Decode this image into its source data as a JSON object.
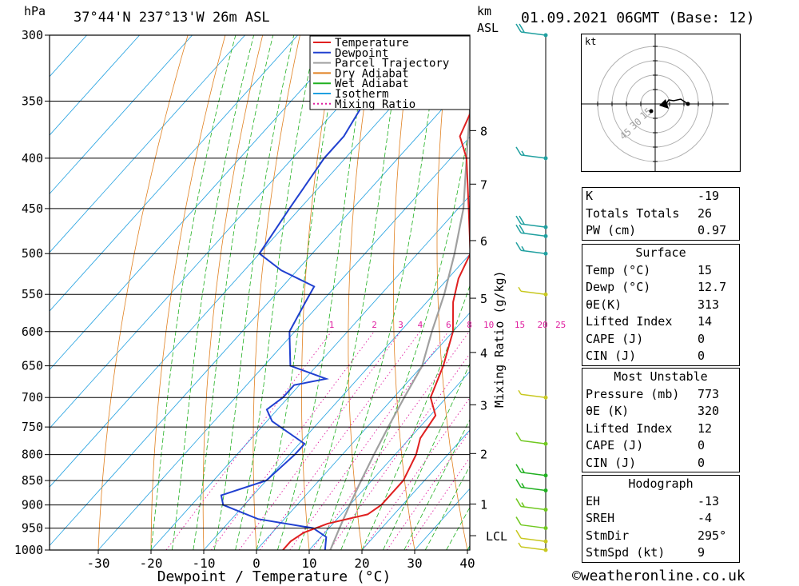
{
  "header": {
    "pressure_unit": "hPa",
    "location": "37°44'N  237°13'W  26m  ASL",
    "km_label": "km",
    "asl_label": "ASL",
    "datetime": "01.09.2021  06GMT  (Base: 12)"
  },
  "legend": [
    {
      "label": "Temperature",
      "color": "#e02020",
      "style": "solid"
    },
    {
      "label": "Dewpoint",
      "color": "#2040d0",
      "style": "solid"
    },
    {
      "label": "Parcel Trajectory",
      "color": "#a0a0a0",
      "style": "solid"
    },
    {
      "label": "Dry Adiabat",
      "color": "#e08020",
      "style": "solid"
    },
    {
      "label": "Wet Adiabat",
      "color": "#20b020",
      "style": "solid"
    },
    {
      "label": "Isotherm",
      "color": "#20a0e0",
      "style": "solid"
    },
    {
      "label": "Mixing Ratio",
      "color": "#e020a0",
      "style": "dotted"
    }
  ],
  "chart_data": {
    "type": "skew-t",
    "xlabel": "Dewpoint / Temperature (°C)",
    "ylabel": "hPa",
    "x_ticks": [
      -30,
      -20,
      -10,
      0,
      10,
      20,
      30,
      40
    ],
    "pressure_levels": [
      300,
      350,
      400,
      450,
      500,
      550,
      600,
      650,
      700,
      750,
      800,
      850,
      900,
      950,
      1000
    ],
    "km_ticks": [
      {
        "label": "8",
        "p": 375
      },
      {
        "label": "7",
        "p": 425
      },
      {
        "label": "6",
        "p": 485
      },
      {
        "label": "5",
        "p": 555
      },
      {
        "label": "4",
        "p": 630
      },
      {
        "label": "3",
        "p": 712
      },
      {
        "label": "2",
        "p": 798
      },
      {
        "label": "1",
        "p": 898
      },
      {
        "label": "LCL",
        "p": 967
      }
    ],
    "mixing_ratio_label": "Mixing Ratio (g/kg)",
    "mixing_ratio_values": [
      1,
      2,
      3,
      4,
      6,
      8,
      10,
      15,
      20,
      25
    ],
    "temperature": [
      [
        300,
        -39
      ],
      [
        330,
        -36
      ],
      [
        350,
        -35
      ],
      [
        380,
        -32
      ],
      [
        400,
        -27
      ],
      [
        450,
        -18
      ],
      [
        500,
        -10
      ],
      [
        530,
        -8
      ],
      [
        560,
        -5
      ],
      [
        600,
        0
      ],
      [
        650,
        4
      ],
      [
        700,
        7
      ],
      [
        730,
        11
      ],
      [
        770,
        12
      ],
      [
        800,
        14
      ],
      [
        850,
        16
      ],
      [
        900,
        16
      ],
      [
        920,
        15
      ],
      [
        940,
        9
      ],
      [
        960,
        6
      ],
      [
        980,
        5
      ],
      [
        1000,
        5
      ]
    ],
    "dewpoint": [
      [
        300,
        -50
      ],
      [
        330,
        -56
      ],
      [
        350,
        -56
      ],
      [
        380,
        -54
      ],
      [
        400,
        -54
      ],
      [
        450,
        -52
      ],
      [
        500,
        -50
      ],
      [
        520,
        -43
      ],
      [
        540,
        -34
      ],
      [
        560,
        -33
      ],
      [
        600,
        -31
      ],
      [
        650,
        -25
      ],
      [
        670,
        -16
      ],
      [
        680,
        -21
      ],
      [
        700,
        -21
      ],
      [
        720,
        -22
      ],
      [
        740,
        -19
      ],
      [
        780,
        -9
      ],
      [
        800,
        -9
      ],
      [
        850,
        -10
      ],
      [
        880,
        -16
      ],
      [
        900,
        -14
      ],
      [
        930,
        -5
      ],
      [
        950,
        7
      ],
      [
        970,
        11
      ],
      [
        1000,
        13
      ]
    ],
    "parcel": [
      [
        300,
        -48
      ],
      [
        350,
        -36
      ],
      [
        400,
        -27
      ],
      [
        450,
        -19
      ],
      [
        500,
        -13
      ],
      [
        550,
        -8
      ],
      [
        600,
        -4
      ],
      [
        650,
        0
      ],
      [
        700,
        2
      ],
      [
        750,
        4
      ],
      [
        800,
        6
      ],
      [
        850,
        8
      ],
      [
        900,
        10
      ],
      [
        950,
        12
      ],
      [
        1000,
        14
      ]
    ],
    "wind_barbs": [
      {
        "p": 300,
        "speed_kt": 20,
        "color": "#20a0a0"
      },
      {
        "p": 400,
        "speed_kt": 15,
        "color": "#20a0a0"
      },
      {
        "p": 470,
        "speed_kt": 20,
        "color": "#20a0a0"
      },
      {
        "p": 480,
        "speed_kt": 20,
        "color": "#20a0a0"
      },
      {
        "p": 500,
        "speed_kt": 15,
        "color": "#20a0a0"
      },
      {
        "p": 550,
        "speed_kt": 5,
        "color": "#c8c820"
      },
      {
        "p": 700,
        "speed_kt": 5,
        "color": "#c8c820"
      },
      {
        "p": 780,
        "speed_kt": 10,
        "color": "#70c820"
      },
      {
        "p": 840,
        "speed_kt": 15,
        "color": "#20b020"
      },
      {
        "p": 870,
        "speed_kt": 15,
        "color": "#20b020"
      },
      {
        "p": 910,
        "speed_kt": 15,
        "color": "#70c820"
      },
      {
        "p": 950,
        "speed_kt": 10,
        "color": "#70c820"
      },
      {
        "p": 980,
        "speed_kt": 10,
        "color": "#c8c820"
      },
      {
        "p": 1000,
        "speed_kt": 5,
        "color": "#c8c820"
      }
    ]
  },
  "hodograph": {
    "unit": "kt",
    "ring_labels": [
      "15",
      "30",
      "45"
    ]
  },
  "indices": {
    "rows": [
      {
        "k": "K",
        "v": "-19"
      },
      {
        "k": "Totals Totals",
        "v": "26"
      },
      {
        "k": "PW (cm)",
        "v": "0.97"
      }
    ]
  },
  "surface": {
    "title": "Surface",
    "rows": [
      {
        "k": "Temp (°C)",
        "v": "15"
      },
      {
        "k": "Dewp (°C)",
        "v": "12.7"
      },
      {
        "k": "θE(K)",
        "v": "313"
      },
      {
        "k": "Lifted Index",
        "v": "14"
      },
      {
        "k": "CAPE (J)",
        "v": "0"
      },
      {
        "k": "CIN (J)",
        "v": "0"
      }
    ]
  },
  "most_unstable": {
    "title": "Most Unstable",
    "rows": [
      {
        "k": "Pressure (mb)",
        "v": "773"
      },
      {
        "k": "θE (K)",
        "v": "320"
      },
      {
        "k": "Lifted Index",
        "v": "12"
      },
      {
        "k": "CAPE (J)",
        "v": "0"
      },
      {
        "k": "CIN (J)",
        "v": "0"
      }
    ]
  },
  "hodograph_table": {
    "title": "Hodograph",
    "rows": [
      {
        "k": "EH",
        "v": "-13"
      },
      {
        "k": "SREH",
        "v": "-4"
      },
      {
        "k": "StmDir",
        "v": "295°"
      },
      {
        "k": "StmSpd (kt)",
        "v": "9"
      }
    ]
  },
  "footer": {
    "text": "©weatheronline.co.uk"
  }
}
